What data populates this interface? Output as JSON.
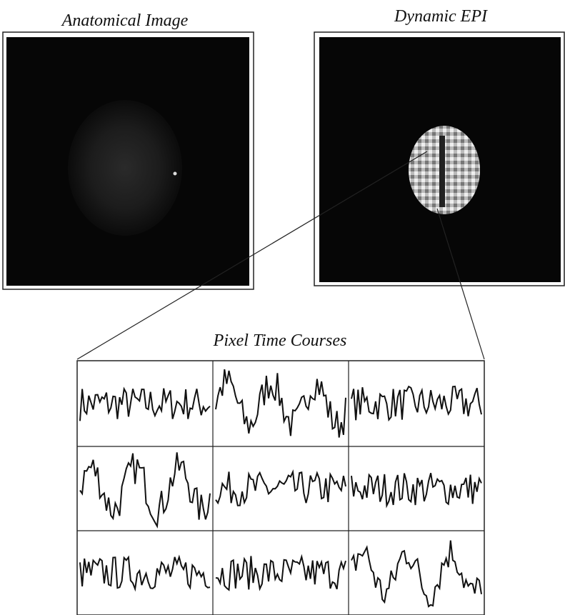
{
  "panels": {
    "anatomical": {
      "title": "Anatomical Image"
    },
    "epi": {
      "title": "Dynamic EPI"
    }
  },
  "time_courses": {
    "title": "Pixel Time Courses"
  }
}
